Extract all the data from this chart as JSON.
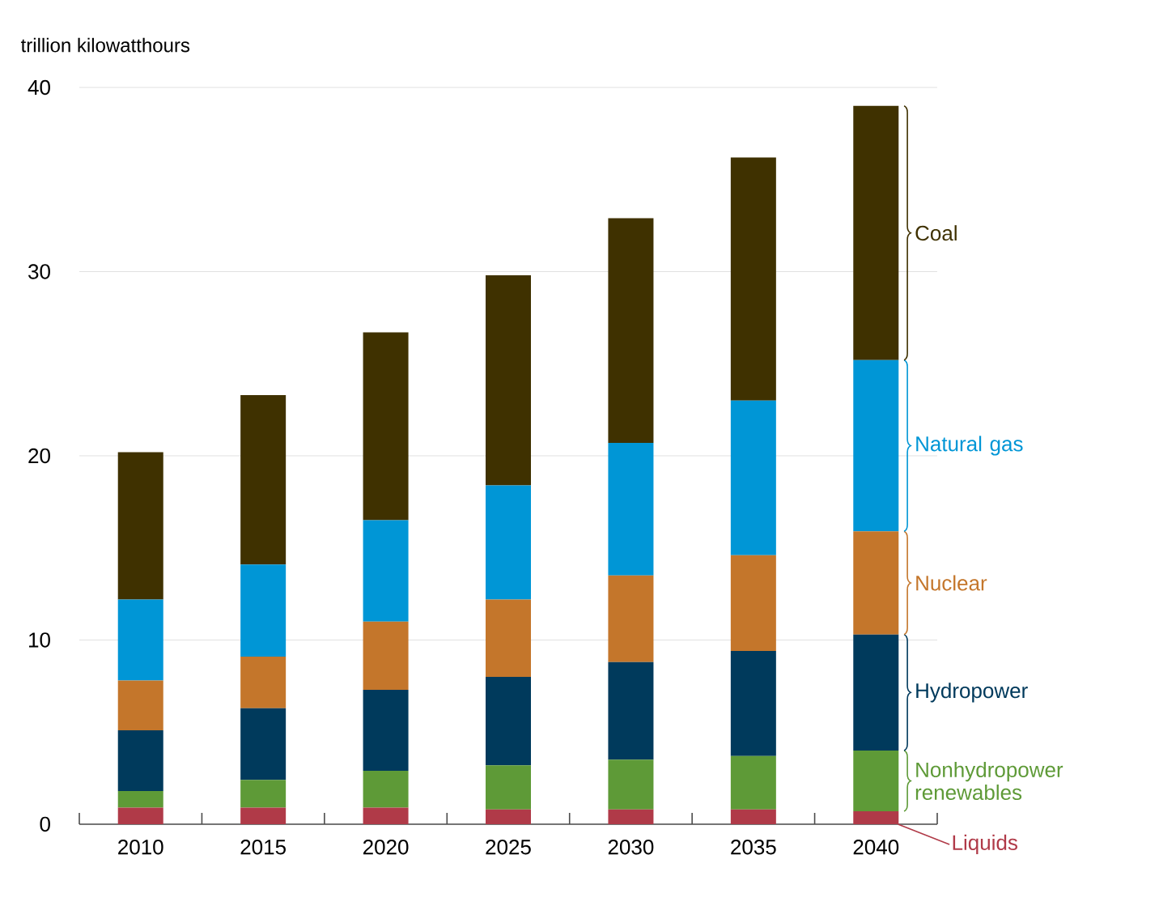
{
  "chart_data": {
    "type": "bar",
    "stacked": true,
    "ylabel": "trillion kilowatthours",
    "categories": [
      "2010",
      "2015",
      "2020",
      "2025",
      "2030",
      "2035",
      "2040"
    ],
    "ylim": [
      0,
      40
    ],
    "yticks": [
      0,
      10,
      20,
      30,
      40
    ],
    "grid": "y",
    "series": [
      {
        "name": "Liquids",
        "color": "#b03a48",
        "values": [
          0.9,
          0.9,
          0.9,
          0.8,
          0.8,
          0.8,
          0.7
        ]
      },
      {
        "name": "Nonhydropower renewables",
        "color": "#5e9a37",
        "values": [
          0.9,
          1.5,
          2.0,
          2.4,
          2.7,
          2.9,
          3.3
        ]
      },
      {
        "name": "Hydropower",
        "color": "#003a5c",
        "values": [
          3.3,
          3.9,
          4.4,
          4.8,
          5.3,
          5.7,
          6.3
        ]
      },
      {
        "name": "Nuclear",
        "color": "#c4762b",
        "values": [
          2.7,
          2.8,
          3.7,
          4.2,
          4.7,
          5.2,
          5.6
        ]
      },
      {
        "name": "Natural gas",
        "color": "#0096d6",
        "values": [
          4.4,
          5.0,
          5.5,
          6.2,
          7.2,
          8.4,
          9.3
        ]
      },
      {
        "name": "Coal",
        "color": "#3f3100",
        "values": [
          8.0,
          9.2,
          10.2,
          11.4,
          12.2,
          13.2,
          13.8
        ]
      }
    ]
  }
}
